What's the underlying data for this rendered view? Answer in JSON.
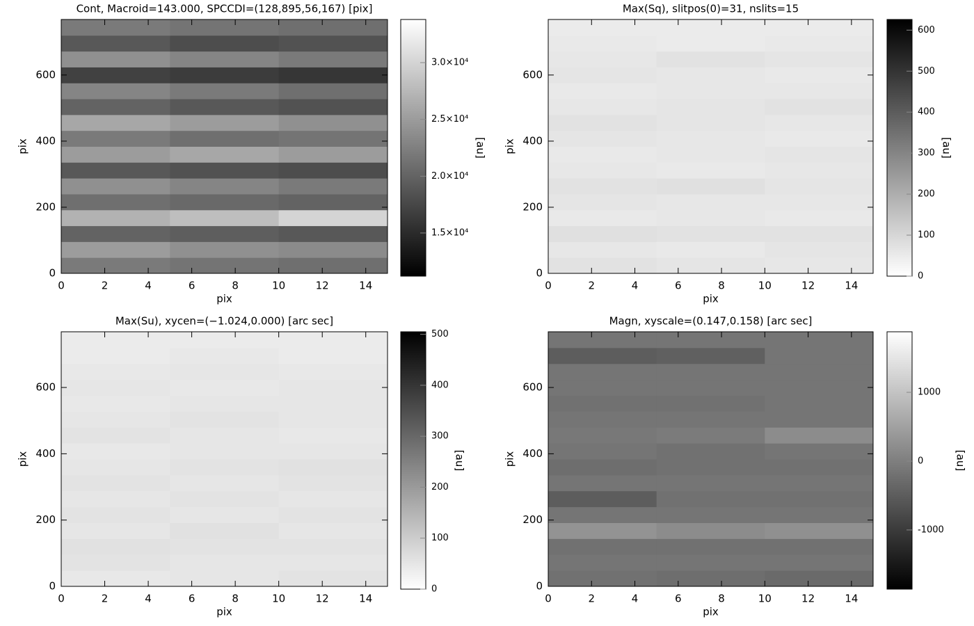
{
  "chart_data": [
    {
      "type": "heatmap",
      "title": "Cont, Macroid=143.000, SPCCDI=(128,895,56,167) [pix]",
      "xlabel": "pix",
      "ylabel": "pix",
      "xlim": [
        0,
        15
      ],
      "ylim": [
        0,
        768
      ],
      "xticks": [
        0,
        2,
        4,
        6,
        8,
        10,
        12,
        14
      ],
      "yticks": [
        0,
        200,
        400,
        600
      ],
      "values": [
        [
          22000,
          21500,
          21000
        ],
        [
          25000,
          24000,
          23500
        ],
        [
          20000,
          19500,
          19000
        ],
        [
          27000,
          28000,
          30000
        ],
        [
          21000,
          20500,
          20000
        ],
        [
          24000,
          23000,
          22000
        ],
        [
          19000,
          18500,
          18000
        ],
        [
          25000,
          26000,
          25000
        ],
        [
          22000,
          21000,
          21500
        ],
        [
          26000,
          25000,
          24000
        ],
        [
          20000,
          19000,
          18500
        ],
        [
          23000,
          22000,
          21000
        ],
        [
          17000,
          16500,
          16000
        ],
        [
          24000,
          23000,
          22000
        ],
        [
          19000,
          18000,
          18500
        ],
        [
          22000,
          21500,
          21000
        ]
      ],
      "colorbar": {
        "label": "[au]",
        "lim": [
          11200,
          33800
        ],
        "reverse": false,
        "ticks": [
          {
            "value": 15000,
            "label": "1.5×10⁴"
          },
          {
            "value": 20000,
            "label": "2.0×10⁴"
          },
          {
            "value": 25000,
            "label": "2.5×10⁴"
          },
          {
            "value": 30000,
            "label": "3.0×10⁴"
          }
        ]
      }
    },
    {
      "type": "heatmap",
      "title": "Max(Sq), slitpos(0)=31, nslits=15",
      "xlabel": "pix",
      "ylabel": "pix",
      "xlim": [
        0,
        15
      ],
      "ylim": [
        0,
        768
      ],
      "xticks": [
        0,
        2,
        4,
        6,
        8,
        10,
        12,
        14
      ],
      "yticks": [
        0,
        200,
        400,
        600
      ],
      "values": [
        [
          70,
          65,
          60
        ],
        [
          60,
          55,
          65
        ],
        [
          75,
          70,
          70
        ],
        [
          55,
          60,
          55
        ],
        [
          65,
          60,
          60
        ],
        [
          70,
          75,
          65
        ],
        [
          60,
          55,
          60
        ],
        [
          55,
          60,
          65
        ],
        [
          65,
          60,
          55
        ],
        [
          70,
          65,
          60
        ],
        [
          60,
          65,
          70
        ],
        [
          55,
          60,
          60
        ],
        [
          65,
          60,
          55
        ],
        [
          60,
          70,
          65
        ],
        [
          55,
          50,
          55
        ],
        [
          50,
          50,
          50
        ]
      ],
      "colorbar": {
        "label": "[au]",
        "lim": [
          0,
          626
        ],
        "reverse": true,
        "ticks": [
          0,
          100,
          200,
          300,
          400,
          500,
          600
        ]
      }
    },
    {
      "type": "heatmap",
      "title": "Max(Su), xycen=(−1.024,0.000) [arc sec]",
      "xlabel": "pix",
      "ylabel": "pix",
      "xlim": [
        0,
        15
      ],
      "ylim": [
        0,
        768
      ],
      "xticks": [
        0,
        2,
        4,
        6,
        8,
        10,
        12,
        14
      ],
      "yticks": [
        0,
        200,
        400,
        600
      ],
      "values": [
        [
          45,
          50,
          55
        ],
        [
          55,
          50,
          50
        ],
        [
          60,
          55,
          55
        ],
        [
          50,
          60,
          50
        ],
        [
          55,
          50,
          55
        ],
        [
          50,
          55,
          50
        ],
        [
          55,
          50,
          55
        ],
        [
          50,
          55,
          60
        ],
        [
          45,
          50,
          50
        ],
        [
          55,
          50,
          45
        ],
        [
          50,
          55,
          50
        ],
        [
          45,
          50,
          50
        ],
        [
          50,
          45,
          50
        ],
        [
          45,
          50,
          45
        ],
        [
          40,
          45,
          40
        ],
        [
          40,
          40,
          40
        ]
      ],
      "colorbar": {
        "label": "[au]",
        "lim": [
          0,
          505
        ],
        "reverse": true,
        "ticks": [
          0,
          100,
          200,
          300,
          400,
          500
        ]
      }
    },
    {
      "type": "heatmap",
      "title": "Magn, xyscale=(0.147,0.158) [arc sec]",
      "xlabel": "pix",
      "ylabel": "pix",
      "xlim": [
        0,
        15
      ],
      "ylim": [
        0,
        768
      ],
      "xticks": [
        0,
        2,
        4,
        6,
        8,
        10,
        12,
        14
      ],
      "yticks": [
        0,
        200,
        400,
        600
      ],
      "values": [
        [
          -200,
          -250,
          -300
        ],
        [
          -150,
          -150,
          -150
        ],
        [
          -200,
          -200,
          -200
        ],
        [
          300,
          200,
          250
        ],
        [
          -150,
          -150,
          -150
        ],
        [
          -500,
          -200,
          -200
        ],
        [
          -150,
          -150,
          -150
        ],
        [
          -250,
          -200,
          -200
        ],
        [
          -150,
          -200,
          -150
        ],
        [
          -100,
          -50,
          200
        ],
        [
          -150,
          -150,
          -150
        ],
        [
          -200,
          -200,
          -150
        ],
        [
          -150,
          -150,
          -150
        ],
        [
          -150,
          -150,
          -150
        ],
        [
          -500,
          -450,
          -150
        ],
        [
          -150,
          -150,
          -150
        ]
      ],
      "colorbar": {
        "label": "[au]",
        "lim": [
          -1860,
          1880
        ],
        "reverse": false,
        "ticks": [
          -1000,
          0,
          1000
        ]
      }
    }
  ]
}
